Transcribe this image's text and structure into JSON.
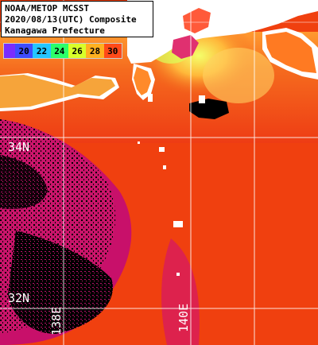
{
  "title": {
    "line1": "NOAA/METOP MCSST",
    "line2": "2020/08/13(UTC) Composite",
    "line3": "Kanagawa Prefecture"
  },
  "legend": {
    "ticks": [
      "20",
      "22",
      "24",
      "26",
      "28",
      "30"
    ],
    "colors": [
      "#7a2cff",
      "#3e4cff",
      "#25c6ff",
      "#2cff6a",
      "#d8ff2a",
      "#ffb020",
      "#ff4a18",
      "#e0006a"
    ]
  },
  "grid_labels": {
    "lat_34": "34N",
    "lat_32": "32N",
    "lon_138": "138E",
    "lon_140": "140E"
  },
  "colors": {
    "land": "#ffffff",
    "cloud": "#000000",
    "sst_warm": "#f23a12",
    "sst_hot": "#d8106a",
    "sst_cool": "#ffb84a"
  }
}
